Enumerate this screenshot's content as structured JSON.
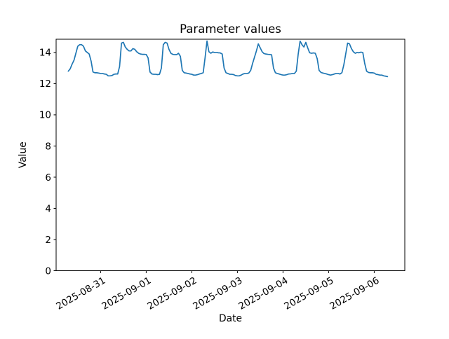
{
  "chart_data": {
    "type": "line",
    "title": "Parameter values",
    "xlabel": "Date",
    "ylabel": "Value",
    "legend": "none",
    "grid": false,
    "line_color": "#1f77b4",
    "axes_edge_color": "#000000",
    "background_color": "#ffffff",
    "y_ticks": [
      0,
      2,
      4,
      6,
      8,
      10,
      12,
      14
    ],
    "ylim": [
      0,
      14.85
    ],
    "x_epoch": "2025-08-30 00:00",
    "xlim_hours": [
      0.6,
      184.1
    ],
    "x_ticks": [
      {
        "label": "2025-08-31",
        "hours": 24
      },
      {
        "label": "2025-09-01",
        "hours": 48
      },
      {
        "label": "2025-09-02",
        "hours": 72
      },
      {
        "label": "2025-09-03",
        "hours": 96
      },
      {
        "label": "2025-09-04",
        "hours": 120
      },
      {
        "label": "2025-09-05",
        "hours": 144
      },
      {
        "label": "2025-09-06",
        "hours": 168
      }
    ],
    "series": [
      {
        "name": "Parameter",
        "start": "2025-08-30 07:00",
        "start_hours": 7,
        "interval_hours": 1,
        "values": [
          12.8,
          12.95,
          13.25,
          13.5,
          13.95,
          14.4,
          14.5,
          14.5,
          14.4,
          14.1,
          14.0,
          13.9,
          13.45,
          12.75,
          12.7,
          12.7,
          12.68,
          12.65,
          12.65,
          12.62,
          12.6,
          12.5,
          12.5,
          12.52,
          12.6,
          12.62,
          12.62,
          13.1,
          14.6,
          14.65,
          14.35,
          14.2,
          14.1,
          14.1,
          14.25,
          14.2,
          14.05,
          13.95,
          13.9,
          13.88,
          13.88,
          13.87,
          13.65,
          12.75,
          12.62,
          12.6,
          12.6,
          12.58,
          12.6,
          13.0,
          14.5,
          14.65,
          14.6,
          14.2,
          13.95,
          13.88,
          13.86,
          13.86,
          13.95,
          13.75,
          12.85,
          12.7,
          12.68,
          12.65,
          12.62,
          12.6,
          12.55,
          12.55,
          12.58,
          12.62,
          12.65,
          12.7,
          13.67,
          14.74,
          14.05,
          13.95,
          14.03,
          14.0,
          14.0,
          13.98,
          13.97,
          13.9,
          13.0,
          12.7,
          12.65,
          12.6,
          12.6,
          12.58,
          12.52,
          12.5,
          12.5,
          12.55,
          12.62,
          12.65,
          12.65,
          12.68,
          12.85,
          13.3,
          13.7,
          14.1,
          14.55,
          14.3,
          14.05,
          13.93,
          13.9,
          13.88,
          13.87,
          13.85,
          13.0,
          12.7,
          12.65,
          12.62,
          12.58,
          12.55,
          12.55,
          12.58,
          12.62,
          12.63,
          12.65,
          12.65,
          12.8,
          13.9,
          14.73,
          14.5,
          14.35,
          14.65,
          14.3,
          13.98,
          13.95,
          13.97,
          13.95,
          13.6,
          12.85,
          12.72,
          12.68,
          12.65,
          12.62,
          12.58,
          12.55,
          12.58,
          12.62,
          12.65,
          12.65,
          12.62,
          12.7,
          13.2,
          13.9,
          14.6,
          14.55,
          14.25,
          14.05,
          13.95,
          14.0,
          13.98,
          14.02,
          14.0,
          13.3,
          12.8,
          12.72,
          12.7,
          12.7,
          12.68,
          12.6,
          12.58,
          12.55,
          12.55,
          12.5,
          12.48,
          12.45
        ]
      }
    ]
  }
}
